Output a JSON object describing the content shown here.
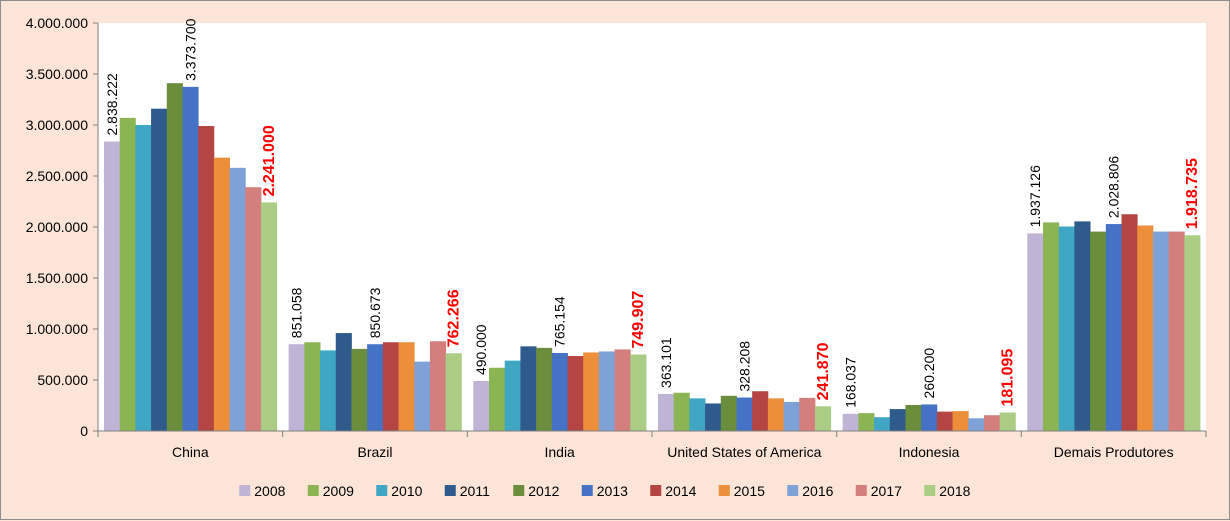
{
  "chart_data": {
    "type": "bar",
    "title": "",
    "xlabel": "",
    "ylabel": "",
    "ylim": [
      0,
      4000000
    ],
    "yticks": [
      "0",
      "500.000",
      "1.000.000",
      "1.500.000",
      "2.000.000",
      "2.500.000",
      "3.000.000",
      "3.500.000",
      "4.000.000"
    ],
    "grid": false,
    "legend_position": "bottom",
    "categories": [
      "China",
      "Brazil",
      "India",
      "United States of America",
      "Indonesia",
      "Demais Produtores"
    ],
    "series": [
      {
        "name": "2008",
        "color": "#C0B4D6",
        "values": [
          2838222,
          851058,
          490000,
          363101,
          168037,
          1937126
        ]
      },
      {
        "name": "2009",
        "color": "#8BB452",
        "values": [
          3070000,
          870000,
          620000,
          375000,
          175000,
          2045000
        ]
      },
      {
        "name": "2010",
        "color": "#3FA6C4",
        "values": [
          3000000,
          790000,
          690000,
          320000,
          135000,
          2005000
        ]
      },
      {
        "name": "2011",
        "color": "#2E5A8C",
        "values": [
          3160000,
          960000,
          830000,
          270000,
          215000,
          2055000
        ]
      },
      {
        "name": "2012",
        "color": "#6B8E3C",
        "values": [
          3410000,
          805000,
          815000,
          345000,
          255000,
          1955000
        ]
      },
      {
        "name": "2013",
        "color": "#4472C4",
        "values": [
          3373700,
          850673,
          765154,
          328208,
          260200,
          2028806
        ]
      },
      {
        "name": "2014",
        "color": "#B54542",
        "values": [
          2990000,
          870000,
          735000,
          390000,
          190000,
          2125000
        ]
      },
      {
        "name": "2015",
        "color": "#ED8F3A",
        "values": [
          2680000,
          870000,
          770000,
          320000,
          195000,
          2015000
        ]
      },
      {
        "name": "2016",
        "color": "#7EA2D8",
        "values": [
          2580000,
          680000,
          780000,
          285000,
          125000,
          1955000
        ]
      },
      {
        "name": "2017",
        "color": "#D47F7E",
        "values": [
          2390000,
          880000,
          800000,
          325000,
          155000,
          1955000
        ]
      },
      {
        "name": "2018",
        "color": "#A9CD83",
        "values": [
          2241000,
          762266,
          749907,
          241870,
          181095,
          1918735
        ]
      }
    ],
    "data_labels": [
      {
        "series": "2008",
        "category": "China",
        "text": "2.838.222",
        "color": "#000000"
      },
      {
        "series": "2013",
        "category": "China",
        "text": "3.373.700",
        "color": "#000000"
      },
      {
        "series": "2018",
        "category": "China",
        "text": "2.241.000",
        "color": "#FF0000"
      },
      {
        "series": "2008",
        "category": "Brazil",
        "text": "851.058",
        "color": "#000000"
      },
      {
        "series": "2013",
        "category": "Brazil",
        "text": "850.673",
        "color": "#000000"
      },
      {
        "series": "2018",
        "category": "Brazil",
        "text": "762.266",
        "color": "#FF0000"
      },
      {
        "series": "2008",
        "category": "India",
        "text": "490.000",
        "color": "#000000"
      },
      {
        "series": "2013",
        "category": "India",
        "text": "765.154",
        "color": "#000000"
      },
      {
        "series": "2018",
        "category": "India",
        "text": "749.907",
        "color": "#FF0000"
      },
      {
        "series": "2008",
        "category": "United States of America",
        "text": "363.101",
        "color": "#000000"
      },
      {
        "series": "2013",
        "category": "United States of America",
        "text": "328.208",
        "color": "#000000"
      },
      {
        "series": "2018",
        "category": "United States of America",
        "text": "241.870",
        "color": "#FF0000"
      },
      {
        "series": "2008",
        "category": "Indonesia",
        "text": "168.037",
        "color": "#000000"
      },
      {
        "series": "2013",
        "category": "Indonesia",
        "text": "260.200",
        "color": "#000000"
      },
      {
        "series": "2018",
        "category": "Indonesia",
        "text": "181.095",
        "color": "#FF0000"
      },
      {
        "series": "2008",
        "category": "Demais Produtores",
        "text": "1.937.126",
        "color": "#000000"
      },
      {
        "series": "2013",
        "category": "Demais Produtores",
        "text": "2.028.806",
        "color": "#000000"
      },
      {
        "series": "2018",
        "category": "Demais Produtores",
        "text": "1.918.735",
        "color": "#FF0000"
      }
    ]
  }
}
